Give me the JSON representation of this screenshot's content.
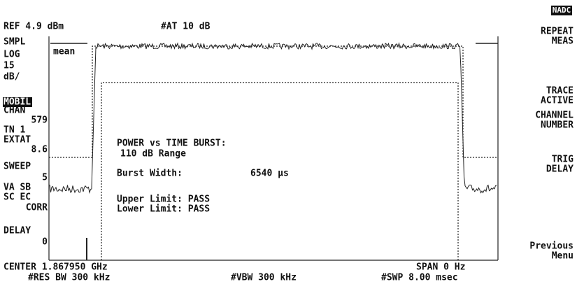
{
  "header": {
    "ref": "REF 4.9 dBm",
    "atten": "#AT 10 dB",
    "mode": "NADC"
  },
  "left_annotations": [
    "SMPL",
    "LOG",
    "15",
    "dB/",
    "MOBIL",
    "CHAN",
    "579",
    "TN 1",
    "EXTAT",
    "8.6",
    "SWEEP",
    "5",
    "VA SB",
    "SC EC",
    "CORR",
    "DELAY",
    "0"
  ],
  "trace_label": "mean",
  "softkeys": [
    [
      "REPEAT",
      "MEAS"
    ],
    [
      "TRACE",
      "ACTIVE"
    ],
    [
      "CHANNEL",
      "NUMBER"
    ],
    [
      "TRIG",
      "DELAY"
    ],
    [
      "Previous",
      "Menu"
    ]
  ],
  "measurement": {
    "title": "POWER vs TIME BURST:",
    "range": "110 dB Range",
    "burst_width_label": "Burst Width:",
    "burst_width_value": "6540 µs",
    "upper_limit": "Upper Limit: PASS",
    "lower_limit": "Lower Limit: PASS"
  },
  "footer": {
    "center": "CENTER 1.867950 GHz",
    "span": "SPAN 0 Hz",
    "res_bw": "#RES BW 300 kHz",
    "vbw": "#VBW 300 kHz",
    "sweep": "#SWP 8.00 msec"
  }
}
